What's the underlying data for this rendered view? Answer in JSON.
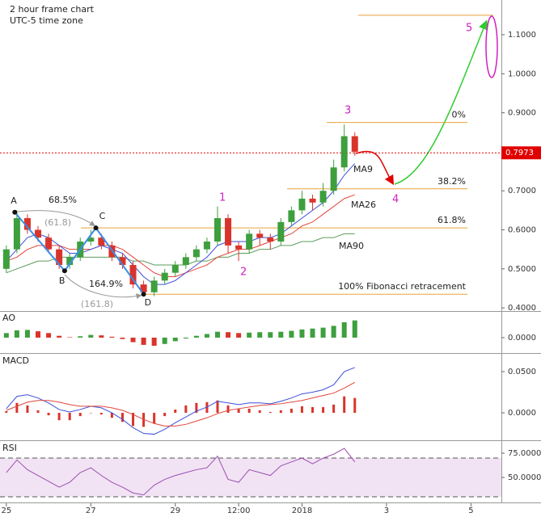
{
  "chart_data": [
    {
      "type": "candlestick",
      "title": "2 hour frame chart",
      "subtitle": "UTC-5 time zone",
      "x": [
        0,
        0.25,
        0.5,
        0.75,
        1,
        1.25,
        1.5,
        1.75,
        2,
        2.25,
        2.5,
        2.75,
        3,
        3.25,
        3.5,
        3.75,
        4,
        4.25,
        4.5,
        4.75,
        5,
        5.25,
        5.5,
        5.75,
        6,
        6.25,
        6.5,
        6.75,
        7,
        7.25,
        7.5,
        7.75,
        8,
        8.25
      ],
      "open": [
        0.5,
        0.55,
        0.63,
        0.6,
        0.58,
        0.55,
        0.51,
        0.53,
        0.57,
        0.58,
        0.56,
        0.53,
        0.51,
        0.46,
        0.44,
        0.47,
        0.49,
        0.51,
        0.53,
        0.55,
        0.57,
        0.63,
        0.56,
        0.55,
        0.59,
        0.58,
        0.57,
        0.62,
        0.65,
        0.68,
        0.67,
        0.7,
        0.76,
        0.84
      ],
      "high": [
        0.56,
        0.65,
        0.64,
        0.61,
        0.59,
        0.56,
        0.54,
        0.58,
        0.6,
        0.59,
        0.57,
        0.54,
        0.52,
        0.47,
        0.48,
        0.5,
        0.52,
        0.54,
        0.56,
        0.58,
        0.66,
        0.64,
        0.57,
        0.6,
        0.6,
        0.59,
        0.63,
        0.66,
        0.7,
        0.69,
        0.72,
        0.78,
        0.87,
        0.85
      ],
      "low": [
        0.49,
        0.54,
        0.59,
        0.57,
        0.54,
        0.5,
        0.5,
        0.52,
        0.56,
        0.55,
        0.52,
        0.5,
        0.45,
        0.43,
        0.43,
        0.46,
        0.48,
        0.5,
        0.52,
        0.54,
        0.56,
        0.54,
        0.52,
        0.54,
        0.56,
        0.55,
        0.56,
        0.61,
        0.64,
        0.65,
        0.66,
        0.69,
        0.75,
        0.79
      ],
      "close": [
        0.55,
        0.63,
        0.6,
        0.58,
        0.55,
        0.51,
        0.53,
        0.57,
        0.58,
        0.56,
        0.53,
        0.51,
        0.46,
        0.44,
        0.47,
        0.49,
        0.51,
        0.53,
        0.55,
        0.57,
        0.63,
        0.56,
        0.55,
        0.59,
        0.58,
        0.57,
        0.62,
        0.65,
        0.68,
        0.67,
        0.7,
        0.76,
        0.84,
        0.8
      ],
      "up_color": "#3d9f3d",
      "down_color": "#d9342b",
      "series": [
        {
          "name": "MA9",
          "color": "#3b4fd9",
          "values": [
            0.52,
            0.55,
            0.58,
            0.59,
            0.58,
            0.56,
            0.54,
            0.54,
            0.55,
            0.56,
            0.55,
            0.54,
            0.51,
            0.48,
            0.46,
            0.46,
            0.47,
            0.49,
            0.51,
            0.53,
            0.56,
            0.57,
            0.57,
            0.57,
            0.58,
            0.58,
            0.59,
            0.61,
            0.63,
            0.65,
            0.67,
            0.7,
            0.74,
            0.77
          ]
        },
        {
          "name": "MA26",
          "color": "#e0453a",
          "values": [
            0.52,
            0.53,
            0.55,
            0.56,
            0.56,
            0.56,
            0.55,
            0.55,
            0.55,
            0.56,
            0.56,
            0.55,
            0.53,
            0.51,
            0.49,
            0.48,
            0.48,
            0.49,
            0.5,
            0.51,
            0.53,
            0.54,
            0.55,
            0.55,
            0.56,
            0.57,
            0.58,
            0.59,
            0.61,
            0.62,
            0.64,
            0.66,
            0.68,
            0.69
          ]
        },
        {
          "name": "MA90",
          "color": "#5c9c5c",
          "values": [
            0.49,
            0.5,
            0.51,
            0.52,
            0.52,
            0.53,
            0.53,
            0.53,
            0.53,
            0.53,
            0.53,
            0.53,
            0.52,
            0.52,
            0.51,
            0.51,
            0.51,
            0.51,
            0.52,
            0.52,
            0.53,
            0.53,
            0.54,
            0.54,
            0.55,
            0.55,
            0.56,
            0.56,
            0.57,
            0.57,
            0.58,
            0.58,
            0.59,
            0.59
          ]
        }
      ],
      "xlim": [
        -0.15,
        11.72
      ],
      "xticks": [
        {
          "value": 0,
          "label": "25"
        },
        {
          "value": 2,
          "label": "27"
        },
        {
          "value": 4,
          "label": "29"
        },
        {
          "value": 5.5,
          "label": "12:00"
        },
        {
          "value": 7,
          "label": "2018"
        },
        {
          "value": 9,
          "label": "3"
        },
        {
          "value": 11,
          "label": "5"
        }
      ],
      "ylim": [
        0.392,
        1.189
      ],
      "yticks": [
        {
          "value": 0.4,
          "label": "0.4000"
        },
        {
          "value": 0.5,
          "label": "0.5000"
        },
        {
          "value": 0.6,
          "label": "0.6000"
        },
        {
          "value": 0.7,
          "label": "0.7000"
        },
        {
          "value": 0.8,
          "label": "0.8000"
        },
        {
          "value": 0.9,
          "label": "0.9000"
        },
        {
          "value": 1.0,
          "label": "1.0000"
        },
        {
          "value": 1.1,
          "label": "1.1000"
        }
      ],
      "last_price": 0.7973,
      "last_price_color": "#e00000",
      "fib_color": "#e8a33a",
      "fib_levels": [
        {
          "value": 0.875,
          "label": "0%"
        },
        {
          "value": 0.705,
          "label": "38.2%"
        },
        {
          "value": 0.605,
          "label": "61.8%"
        },
        {
          "value": 0.435,
          "label": "100% Fibonacci retracement"
        }
      ],
      "target_level": 1.15,
      "abcd": {
        "labels": [
          "A",
          "B",
          "C",
          "D"
        ],
        "x": [
          0.2,
          1.38,
          2.12,
          3.25
        ],
        "y": [
          0.645,
          0.495,
          0.605,
          0.435
        ],
        "color": "#3a8ee6"
      },
      "abcd_ratios": [
        "68.5%",
        "(61.8)",
        "164.9%",
        "(161.8)"
      ],
      "waves": [
        "1",
        "2",
        "3",
        "4",
        "5"
      ],
      "wave_color": "#d020c0"
    },
    {
      "type": "histogram-indicator",
      "title": "AO",
      "values": [
        0.01,
        0.016,
        0.017,
        0.014,
        0.01,
        0.004,
        0.001,
        0.003,
        0.006,
        0.005,
        0.002,
        -0.003,
        -0.01,
        -0.016,
        -0.018,
        -0.014,
        -0.008,
        -0.002,
        0.004,
        0.008,
        0.013,
        0.012,
        0.01,
        0.011,
        0.012,
        0.012,
        0.013,
        0.015,
        0.018,
        0.02,
        0.022,
        0.026,
        0.034,
        0.038
      ],
      "up_color": "#3d9f3d",
      "down_color": "#d9342b",
      "ylim": [
        -0.034,
        0.057
      ],
      "yticks": [
        {
          "value": 0,
          "label": "0.0000"
        }
      ]
    },
    {
      "type": "macd",
      "title": "MACD",
      "series": [
        {
          "name": "MACD",
          "color": "#3b4fd9",
          "values": [
            0.005,
            0.02,
            0.022,
            0.018,
            0.012,
            0.004,
            0.001,
            0.004,
            0.008,
            0.006,
            0.0,
            -0.008,
            -0.018,
            -0.025,
            -0.026,
            -0.02,
            -0.012,
            -0.005,
            0.002,
            0.007,
            0.014,
            0.012,
            0.01,
            0.012,
            0.012,
            0.011,
            0.014,
            0.018,
            0.023,
            0.025,
            0.028,
            0.034,
            0.05,
            0.055
          ]
        },
        {
          "name": "Signal",
          "color": "#e0453a",
          "values": [
            0.003,
            0.008,
            0.013,
            0.015,
            0.015,
            0.013,
            0.01,
            0.008,
            0.008,
            0.008,
            0.006,
            0.003,
            -0.002,
            -0.008,
            -0.013,
            -0.016,
            -0.016,
            -0.014,
            -0.01,
            -0.006,
            -0.001,
            0.003,
            0.005,
            0.007,
            0.009,
            0.01,
            0.011,
            0.013,
            0.015,
            0.018,
            0.021,
            0.024,
            0.03,
            0.037
          ]
        }
      ],
      "histogram": [
        0.002,
        0.012,
        0.009,
        0.003,
        -0.003,
        -0.009,
        -0.009,
        -0.004,
        0.0,
        -0.002,
        -0.006,
        -0.011,
        -0.016,
        -0.017,
        -0.013,
        -0.004,
        0.004,
        0.009,
        0.012,
        0.013,
        0.015,
        0.009,
        0.005,
        0.005,
        0.003,
        0.001,
        0.003,
        0.005,
        0.008,
        0.007,
        0.007,
        0.01,
        0.02,
        0.018
      ],
      "histogram_color": "#d9342b",
      "ylim": [
        -0.0333,
        0.0716
      ],
      "yticks": [
        {
          "value": 0,
          "label": "0.0000"
        },
        {
          "value": 0.05,
          "label": "0.0500"
        }
      ]
    },
    {
      "type": "line-indicator",
      "title": "RSI",
      "color": "#9c4fb0",
      "values": [
        55,
        68,
        58,
        52,
        46,
        40,
        45,
        55,
        60,
        52,
        45,
        40,
        34,
        32,
        42,
        48,
        52,
        55,
        58,
        60,
        72,
        48,
        45,
        58,
        55,
        52,
        62,
        66,
        70,
        64,
        70,
        74,
        80,
        66
      ],
      "band": [
        30,
        70
      ],
      "band_color": "#f1e3f4",
      "ylim": [
        24.2,
        86.7
      ],
      "yticks": [
        {
          "value": 50,
          "label": "50.0000"
        },
        {
          "value": 75,
          "label": "75.0000"
        }
      ]
    }
  ]
}
